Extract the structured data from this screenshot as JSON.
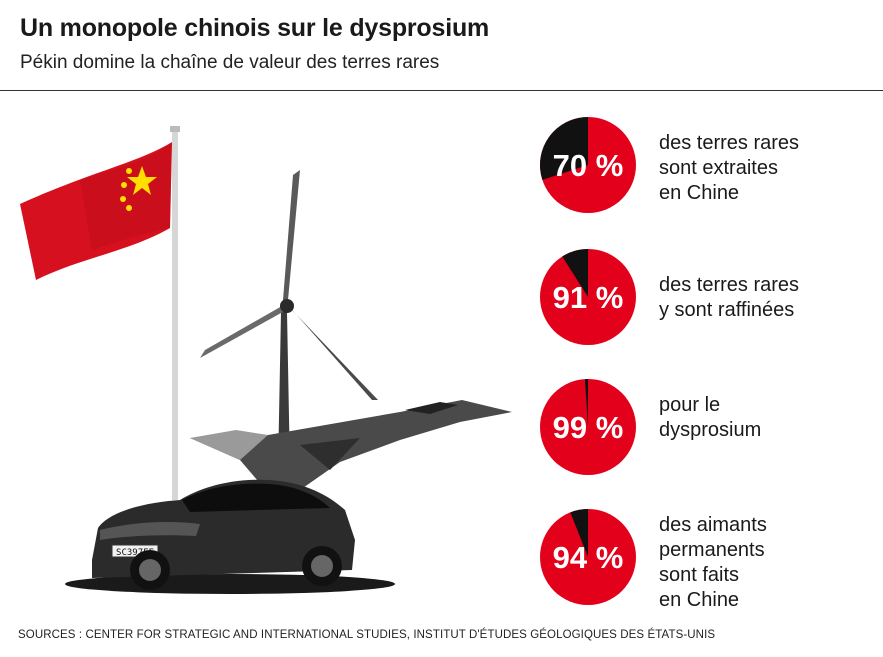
{
  "header": {
    "title": "Un monopole chinois sur le dysprosium",
    "subtitle": "Pékin domine la chaîne de valeur des terres rares"
  },
  "illustration": {
    "flag_icon": "china-flag-icon",
    "turbine_icon": "wind-turbine-icon",
    "jet_icon": "fighter-jet-icon",
    "car_icon": "electric-car-icon",
    "license_plate": "SC397FF"
  },
  "colors": {
    "accent": "#e3001b",
    "share_other": "#111111",
    "flag_star": "#ffde00"
  },
  "chart_data": {
    "type": "pie",
    "unit": "%",
    "items": [
      {
        "value": 70,
        "value_label": "70 %",
        "lines": [
          "des terres rares",
          "sont extraites",
          "en Chine"
        ]
      },
      {
        "value": 91,
        "value_label": "91 %",
        "lines": [
          "des terres rares",
          "y sont raffinées"
        ]
      },
      {
        "value": 99,
        "value_label": "99 %",
        "lines": [
          "pour le",
          "dysprosium"
        ]
      },
      {
        "value": 94,
        "value_label": "94 %",
        "lines": [
          "des aimants",
          "permanents",
          "sont faits",
          "en Chine"
        ]
      }
    ]
  },
  "footer": {
    "sources": "SOURCES : CENTER FOR STRATEGIC AND INTERNATIONAL STUDIES, INSTITUT D'ÉTUDES GÉOLOGIQUES DES ÉTATS-UNIS"
  }
}
